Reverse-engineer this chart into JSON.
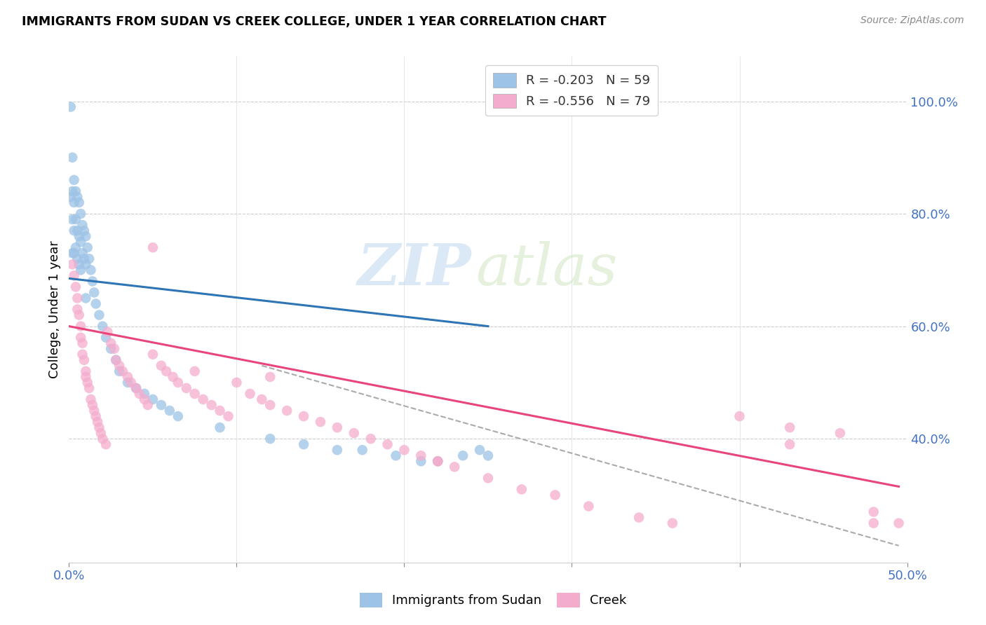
{
  "title": "IMMIGRANTS FROM SUDAN VS CREEK COLLEGE, UNDER 1 YEAR CORRELATION CHART",
  "source": "Source: ZipAtlas.com",
  "ylabel": "College, Under 1 year",
  "right_yticks": [
    "100.0%",
    "80.0%",
    "60.0%",
    "40.0%"
  ],
  "right_ytick_vals": [
    1.0,
    0.8,
    0.6,
    0.4
  ],
  "xlim": [
    0.0,
    0.5
  ],
  "ylim": [
    0.18,
    1.08
  ],
  "blue_color": "#9DC3E6",
  "pink_color": "#F4ACCD",
  "blue_line_color": "#2E75B6",
  "pink_line_color": "#E8457A",
  "dashed_line_color": "#AAAAAA",
  "sudan_points_x": [
    0.001,
    0.001,
    0.002,
    0.002,
    0.002,
    0.002,
    0.003,
    0.003,
    0.003,
    0.003,
    0.004,
    0.004,
    0.004,
    0.005,
    0.005,
    0.005,
    0.006,
    0.006,
    0.006,
    0.007,
    0.007,
    0.007,
    0.008,
    0.008,
    0.009,
    0.009,
    0.01,
    0.01,
    0.01,
    0.011,
    0.012,
    0.013,
    0.014,
    0.015,
    0.016,
    0.018,
    0.02,
    0.022,
    0.025,
    0.028,
    0.03,
    0.035,
    0.04,
    0.045,
    0.05,
    0.055,
    0.06,
    0.065,
    0.09,
    0.12,
    0.14,
    0.16,
    0.175,
    0.195,
    0.21,
    0.22,
    0.235,
    0.245,
    0.25
  ],
  "sudan_points_y": [
    0.99,
    0.83,
    0.9,
    0.84,
    0.79,
    0.73,
    0.86,
    0.82,
    0.77,
    0.73,
    0.84,
    0.79,
    0.74,
    0.83,
    0.77,
    0.72,
    0.82,
    0.76,
    0.71,
    0.8,
    0.75,
    0.7,
    0.78,
    0.73,
    0.77,
    0.72,
    0.76,
    0.71,
    0.65,
    0.74,
    0.72,
    0.7,
    0.68,
    0.66,
    0.64,
    0.62,
    0.6,
    0.58,
    0.56,
    0.54,
    0.52,
    0.5,
    0.49,
    0.48,
    0.47,
    0.46,
    0.45,
    0.44,
    0.42,
    0.4,
    0.39,
    0.38,
    0.38,
    0.37,
    0.36,
    0.36,
    0.37,
    0.38,
    0.37
  ],
  "creek_points_x": [
    0.002,
    0.003,
    0.004,
    0.005,
    0.005,
    0.006,
    0.007,
    0.007,
    0.008,
    0.008,
    0.009,
    0.01,
    0.01,
    0.011,
    0.012,
    0.013,
    0.014,
    0.015,
    0.016,
    0.017,
    0.018,
    0.019,
    0.02,
    0.022,
    0.023,
    0.025,
    0.027,
    0.028,
    0.03,
    0.032,
    0.035,
    0.037,
    0.04,
    0.042,
    0.045,
    0.047,
    0.05,
    0.055,
    0.058,
    0.062,
    0.065,
    0.07,
    0.075,
    0.08,
    0.085,
    0.09,
    0.095,
    0.1,
    0.108,
    0.115,
    0.12,
    0.13,
    0.14,
    0.15,
    0.16,
    0.17,
    0.18,
    0.19,
    0.2,
    0.21,
    0.22,
    0.23,
    0.25,
    0.27,
    0.29,
    0.31,
    0.34,
    0.36,
    0.4,
    0.43,
    0.46,
    0.48,
    0.495,
    0.05,
    0.075,
    0.12,
    0.22,
    0.43,
    0.48
  ],
  "creek_points_y": [
    0.71,
    0.69,
    0.67,
    0.65,
    0.63,
    0.62,
    0.6,
    0.58,
    0.57,
    0.55,
    0.54,
    0.52,
    0.51,
    0.5,
    0.49,
    0.47,
    0.46,
    0.45,
    0.44,
    0.43,
    0.42,
    0.41,
    0.4,
    0.39,
    0.59,
    0.57,
    0.56,
    0.54,
    0.53,
    0.52,
    0.51,
    0.5,
    0.49,
    0.48,
    0.47,
    0.46,
    0.55,
    0.53,
    0.52,
    0.51,
    0.5,
    0.49,
    0.48,
    0.47,
    0.46,
    0.45,
    0.44,
    0.5,
    0.48,
    0.47,
    0.46,
    0.45,
    0.44,
    0.43,
    0.42,
    0.41,
    0.4,
    0.39,
    0.38,
    0.37,
    0.36,
    0.35,
    0.33,
    0.31,
    0.3,
    0.28,
    0.26,
    0.25,
    0.44,
    0.42,
    0.41,
    0.27,
    0.25,
    0.74,
    0.52,
    0.51,
    0.36,
    0.39,
    0.25
  ],
  "blue_trendline_x": [
    0.0,
    0.25
  ],
  "blue_trendline_y": [
    0.685,
    0.6
  ],
  "pink_trendline_x": [
    0.0,
    0.495
  ],
  "pink_trendline_y": [
    0.6,
    0.315
  ],
  "dashed_line_x": [
    0.115,
    0.495
  ],
  "dashed_line_y": [
    0.53,
    0.21
  ],
  "legend_entries": [
    {
      "label": "R = -0.203   N = 59",
      "color": "#9DC3E6"
    },
    {
      "label": "R = -0.556   N = 79",
      "color": "#F4ACCD"
    }
  ],
  "bottom_legend": [
    "Immigrants from Sudan",
    "Creek"
  ]
}
